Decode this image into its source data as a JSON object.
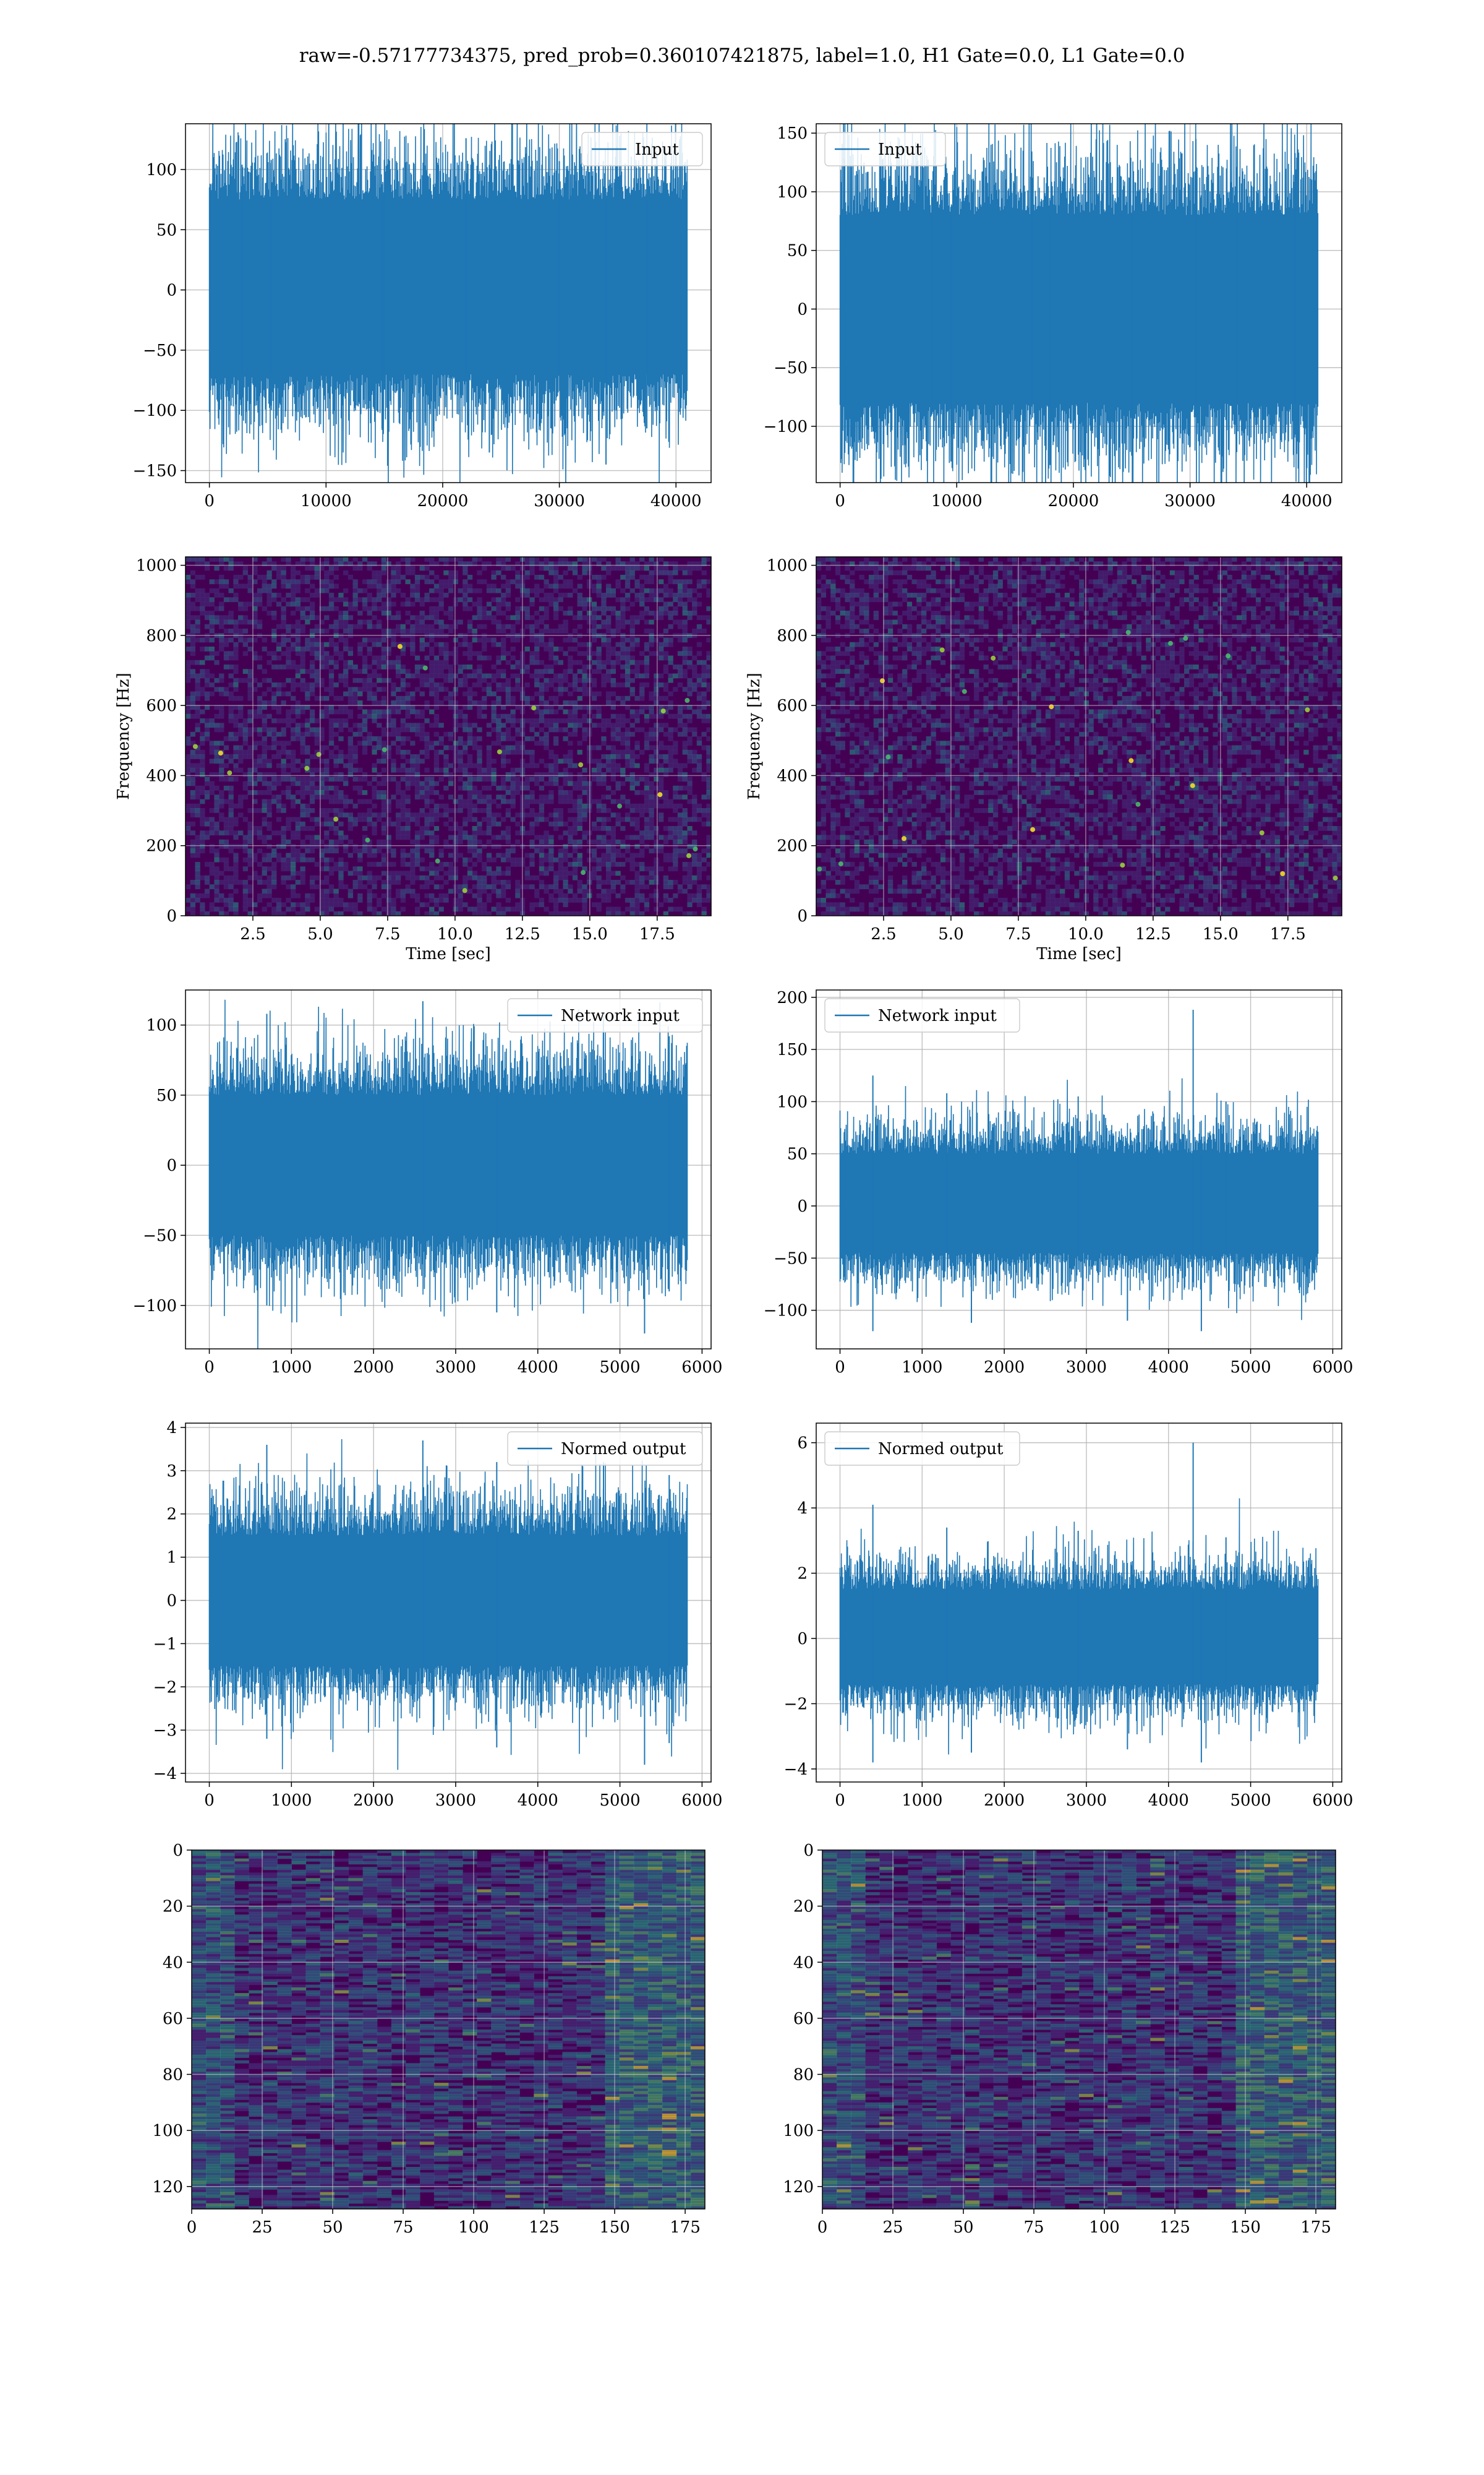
{
  "figure": {
    "suptitle": "raw=-0.57177734375, pred_prob=0.360107421875, label=1.0, H1 Gate=0.0, L1 Gate=0.0"
  },
  "colors": {
    "series": "#1f77b4",
    "grid": "#b0b0b0",
    "axes": "#000000"
  },
  "chart_data": [
    {
      "id": "p0",
      "type": "line",
      "legend": "Input",
      "legend_loc": "upper right",
      "grid": true,
      "xlim": [
        -2048,
        43008
      ],
      "ylim": [
        -160,
        138
      ],
      "xticks": [
        0,
        10000,
        20000,
        30000,
        40000
      ],
      "xticklabels": [
        "0",
        "10000",
        "20000",
        "30000",
        "40000"
      ],
      "yticks": [
        -150,
        -100,
        -50,
        0,
        50,
        100
      ],
      "yticklabels": [
        "−150",
        "−100",
        "−50",
        "0",
        "50",
        "100"
      ],
      "series": {
        "x_range": [
          0,
          40959
        ],
        "core_range": [
          -70,
          75
        ],
        "peaks_pos": [
          [
            2800,
            104
          ],
          [
            5300,
            108
          ],
          [
            15000,
            108
          ],
          [
            22000,
            126
          ],
          [
            30000,
            107
          ]
        ],
        "peaks_neg": [
          [
            14800,
            -115
          ],
          [
            24000,
            -135
          ],
          [
            34000,
            -145
          ],
          [
            37500,
            -115
          ]
        ]
      }
    },
    {
      "id": "p1",
      "type": "line",
      "legend": "Input",
      "legend_loc": "upper left",
      "grid": true,
      "xlim": [
        -2048,
        43008
      ],
      "ylim": [
        -148,
        158
      ],
      "xticks": [
        0,
        10000,
        20000,
        30000,
        40000
      ],
      "xticklabels": [
        "0",
        "10000",
        "20000",
        "30000",
        "40000"
      ],
      "yticks": [
        -100,
        -50,
        0,
        50,
        100,
        150
      ],
      "yticklabels": [
        "−100",
        "−50",
        "0",
        "50",
        "100",
        "150"
      ],
      "series": {
        "x_range": [
          0,
          40959
        ],
        "core_range": [
          -80,
          80
        ],
        "peaks_pos": [
          [
            3800,
            112
          ],
          [
            8000,
            115
          ],
          [
            16500,
            112
          ],
          [
            30500,
            145
          ],
          [
            39000,
            133
          ]
        ],
        "peaks_neg": [
          [
            9500,
            -130
          ],
          [
            18000,
            -133
          ],
          [
            25000,
            -125
          ],
          [
            34000,
            -122
          ]
        ]
      }
    },
    {
      "id": "p2",
      "type": "heatmap",
      "grid": true,
      "ylabel": "Frequency [Hz]",
      "xlabel": "Time [sec]",
      "xlim": [
        0,
        19.5
      ],
      "ylim": [
        0,
        1024
      ],
      "xticks": [
        2.5,
        5,
        7.5,
        10,
        12.5,
        15,
        17.5
      ],
      "xticklabels": [
        "2.5",
        "5.0",
        "7.5",
        "10.0",
        "12.5",
        "15.0",
        "17.5"
      ],
      "yticks": [
        0,
        200,
        400,
        600,
        800,
        1000
      ],
      "yticklabels": [
        "0",
        "200",
        "400",
        "600",
        "800",
        "1000"
      ],
      "colormap": "viridis"
    },
    {
      "id": "p3",
      "type": "heatmap",
      "grid": true,
      "ylabel": "Frequency [Hz]",
      "xlabel": "Time [sec]",
      "xlim": [
        0,
        19.5
      ],
      "ylim": [
        0,
        1024
      ],
      "xticks": [
        2.5,
        5,
        7.5,
        10,
        12.5,
        15,
        17.5
      ],
      "xticklabels": [
        "2.5",
        "5.0",
        "7.5",
        "10.0",
        "12.5",
        "15.0",
        "17.5"
      ],
      "yticks": [
        0,
        200,
        400,
        600,
        800,
        1000
      ],
      "yticklabels": [
        "0",
        "200",
        "400",
        "600",
        "800",
        "1000"
      ],
      "colormap": "viridis"
    },
    {
      "id": "p4",
      "type": "line",
      "legend": "Network input",
      "legend_loc": "upper right",
      "grid": true,
      "xlim": [
        -290,
        6110
      ],
      "ylim": [
        -131,
        125
      ],
      "xticks": [
        0,
        1000,
        2000,
        3000,
        4000,
        5000,
        6000
      ],
      "xticklabels": [
        "0",
        "1000",
        "2000",
        "3000",
        "4000",
        "5000",
        "6000"
      ],
      "yticks": [
        -100,
        -50,
        0,
        50,
        100
      ],
      "yticklabels": [
        "−100",
        "−50",
        "0",
        "50",
        "100"
      ],
      "series": {
        "x_range": [
          0,
          5820
        ],
        "core_range": [
          -50,
          50
        ],
        "peaks_pos": [
          [
            700,
            108
          ],
          [
            2600,
            117
          ],
          [
            4800,
            104
          ],
          [
            5600,
            92
          ]
        ],
        "peaks_neg": [
          [
            700,
            -100
          ],
          [
            3500,
            -105
          ],
          [
            5300,
            -120
          ],
          [
            5600,
            -90
          ]
        ]
      }
    },
    {
      "id": "p5",
      "type": "line",
      "legend": "Network input",
      "legend_loc": "upper left",
      "grid": true,
      "xlim": [
        -290,
        6110
      ],
      "ylim": [
        -137,
        207
      ],
      "xticks": [
        0,
        1000,
        2000,
        3000,
        4000,
        5000,
        6000
      ],
      "xticklabels": [
        "0",
        "1000",
        "2000",
        "3000",
        "4000",
        "5000",
        "6000"
      ],
      "yticks": [
        -100,
        -50,
        0,
        50,
        100,
        150,
        200
      ],
      "yticklabels": [
        "−100",
        "−50",
        "0",
        "50",
        "100",
        "150",
        "200"
      ],
      "series": {
        "x_range": [
          0,
          5820
        ],
        "core_range": [
          -45,
          50
        ],
        "peaks_pos": [
          [
            400,
            125
          ],
          [
            1300,
            108
          ],
          [
            2900,
            105
          ],
          [
            4300,
            188
          ],
          [
            4700,
            100
          ]
        ],
        "peaks_neg": [
          [
            400,
            -120
          ],
          [
            1600,
            -112
          ],
          [
            3500,
            -110
          ],
          [
            4400,
            -120
          ]
        ]
      }
    },
    {
      "id": "p6",
      "type": "line",
      "legend": "Normed output",
      "legend_loc": "upper right",
      "grid": true,
      "xlim": [
        -290,
        6110
      ],
      "ylim": [
        -4.2,
        4.1
      ],
      "xticks": [
        0,
        1000,
        2000,
        3000,
        4000,
        5000,
        6000
      ],
      "xticklabels": [
        "0",
        "1000",
        "2000",
        "3000",
        "4000",
        "5000",
        "6000"
      ],
      "yticks": [
        -4,
        -3,
        -2,
        -1,
        0,
        1,
        2,
        3,
        4
      ],
      "yticklabels": [
        "−4",
        "−3",
        "−2",
        "−1",
        "0",
        "1",
        "2",
        "3",
        "4"
      ],
      "series": {
        "x_range": [
          0,
          5820
        ],
        "core_range": [
          -1.5,
          1.5
        ],
        "peaks_pos": [
          [
            700,
            3.6
          ],
          [
            2600,
            3.7
          ],
          [
            3500,
            3.2
          ],
          [
            4800,
            3.2
          ],
          [
            5600,
            2.9
          ]
        ],
        "peaks_neg": [
          [
            700,
            -3.2
          ],
          [
            3500,
            -3.4
          ],
          [
            5300,
            -3.8
          ],
          [
            5600,
            -3.3
          ]
        ]
      }
    },
    {
      "id": "p7",
      "type": "line",
      "legend": "Normed output",
      "legend_loc": "upper left",
      "grid": true,
      "xlim": [
        -290,
        6110
      ],
      "ylim": [
        -4.4,
        6.6
      ],
      "xticks": [
        0,
        1000,
        2000,
        3000,
        4000,
        5000,
        6000
      ],
      "xticklabels": [
        "0",
        "1000",
        "2000",
        "3000",
        "4000",
        "5000",
        "6000"
      ],
      "yticks": [
        -4,
        -2,
        0,
        2,
        4,
        6
      ],
      "yticklabels": [
        "−4",
        "−2",
        "0",
        "2",
        "4",
        "6"
      ],
      "series": {
        "x_range": [
          0,
          5820
        ],
        "core_range": [
          -1.4,
          1.5
        ],
        "peaks_pos": [
          [
            400,
            4.1
          ],
          [
            1300,
            3.4
          ],
          [
            2900,
            3.3
          ],
          [
            4300,
            6.0
          ],
          [
            4700,
            3.1
          ]
        ],
        "peaks_neg": [
          [
            400,
            -3.8
          ],
          [
            1600,
            -3.5
          ],
          [
            3500,
            -3.4
          ],
          [
            4400,
            -3.8
          ]
        ]
      }
    },
    {
      "id": "p8",
      "type": "heatmap",
      "grid": true,
      "xlim": [
        0,
        182
      ],
      "ylim": [
        128,
        0
      ],
      "xticks": [
        0,
        25,
        50,
        75,
        100,
        125,
        150,
        175
      ],
      "xticklabels": [
        "0",
        "25",
        "50",
        "75",
        "100",
        "125",
        "150",
        "175"
      ],
      "yticks": [
        0,
        20,
        40,
        60,
        80,
        100,
        120
      ],
      "yticklabels": [
        "0",
        "20",
        "40",
        "60",
        "80",
        "100",
        "120"
      ],
      "colormap": "viridis"
    },
    {
      "id": "p9",
      "type": "heatmap",
      "grid": true,
      "xlim": [
        0,
        182
      ],
      "ylim": [
        128,
        0
      ],
      "xticks": [
        0,
        25,
        50,
        75,
        100,
        125,
        150,
        175
      ],
      "xticklabels": [
        "0",
        "25",
        "50",
        "75",
        "100",
        "125",
        "150",
        "175"
      ],
      "yticks": [
        0,
        20,
        40,
        60,
        80,
        100,
        120
      ],
      "yticklabels": [
        "0",
        "20",
        "40",
        "60",
        "80",
        "100",
        "120"
      ],
      "colormap": "viridis"
    }
  ]
}
